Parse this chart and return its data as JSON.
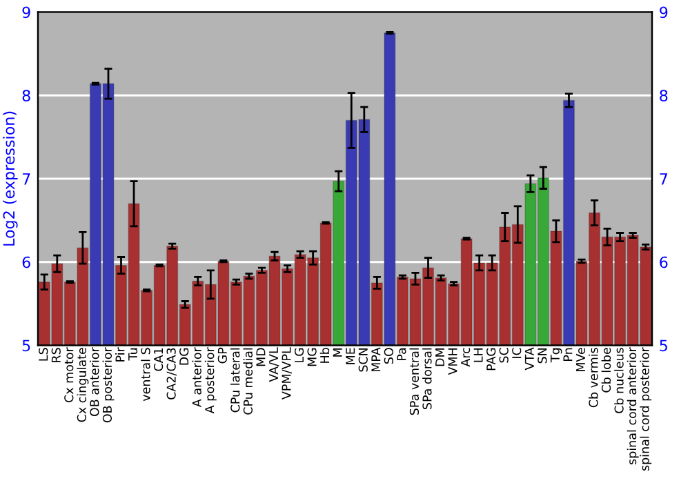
{
  "chart_data": {
    "type": "bar",
    "ylabel": "Log2 (expression)",
    "categories": [
      "LS",
      "RS",
      "Cx motor",
      "Cx cingulate",
      "OB anterior",
      "OB posterior",
      "Pir",
      "Tu",
      "ventral S",
      "CA1",
      "CA2/CA3",
      "DG",
      "A anterior",
      "A posterior",
      "GP",
      "CPu lateral",
      "CPu medial",
      "MD",
      "VA/VL",
      "VPM/VPL",
      "LG",
      "MG",
      "Hb",
      "M",
      "ME",
      "SCN",
      "MPA",
      "SO",
      "Pa",
      "SPa ventral",
      "SPa dorsal",
      "DM",
      "VMH",
      "Arc",
      "LH",
      "PAG",
      "SC",
      "IC",
      "VTA",
      "SN",
      "Tg",
      "Pn",
      "MVe",
      "Cb vermis",
      "Cb lobe",
      "Cb nucleus",
      "spinal cord anterior",
      "spinal cord posterior"
    ],
    "values": [
      5.76,
      5.98,
      5.76,
      6.17,
      8.14,
      8.14,
      5.96,
      6.7,
      5.66,
      5.96,
      6.19,
      5.49,
      5.77,
      5.73,
      6.01,
      5.76,
      5.83,
      5.9,
      6.07,
      5.92,
      6.09,
      6.05,
      6.47,
      6.97,
      7.7,
      7.71,
      5.75,
      8.75,
      5.82,
      5.8,
      5.93,
      5.81,
      5.74,
      6.28,
      5.99,
      5.99,
      6.42,
      6.45,
      6.94,
      7.01,
      6.37,
      7.94,
      6.01,
      6.59,
      6.3,
      6.3,
      6.32,
      6.18
    ],
    "errors": [
      0.09,
      0.1,
      0.01,
      0.19,
      0.01,
      0.18,
      0.1,
      0.27,
      0.01,
      0.01,
      0.03,
      0.04,
      0.05,
      0.17,
      0.01,
      0.03,
      0.03,
      0.03,
      0.05,
      0.04,
      0.04,
      0.08,
      0.01,
      0.12,
      0.33,
      0.15,
      0.07,
      0.01,
      0.02,
      0.07,
      0.12,
      0.03,
      0.02,
      0.01,
      0.09,
      0.09,
      0.17,
      0.22,
      0.1,
      0.13,
      0.13,
      0.08,
      0.02,
      0.15,
      0.1,
      0.05,
      0.03,
      0.03
    ],
    "colors": [
      "#a83030",
      "#a83030",
      "#a83030",
      "#a83030",
      "#3a3ab4",
      "#3a3ab4",
      "#a83030",
      "#a83030",
      "#a83030",
      "#a83030",
      "#a83030",
      "#a83030",
      "#a83030",
      "#a83030",
      "#a83030",
      "#a83030",
      "#a83030",
      "#a83030",
      "#a83030",
      "#a83030",
      "#a83030",
      "#a83030",
      "#a83030",
      "#38a838",
      "#3a3ab4",
      "#3a3ab4",
      "#a83030",
      "#3a3ab4",
      "#a83030",
      "#a83030",
      "#a83030",
      "#a83030",
      "#a83030",
      "#a83030",
      "#a83030",
      "#a83030",
      "#a83030",
      "#a83030",
      "#38a838",
      "#38a838",
      "#a83030",
      "#3a3ab4",
      "#a83030",
      "#a83030",
      "#a83030",
      "#a83030",
      "#a83030",
      "#a83030"
    ],
    "ylim": [
      5,
      9
    ],
    "yticks": [
      5,
      6,
      7,
      8,
      9
    ],
    "y2lim": [
      5,
      9
    ],
    "y2ticks": [
      5,
      6,
      7,
      8,
      9
    ],
    "grid": "y"
  }
}
